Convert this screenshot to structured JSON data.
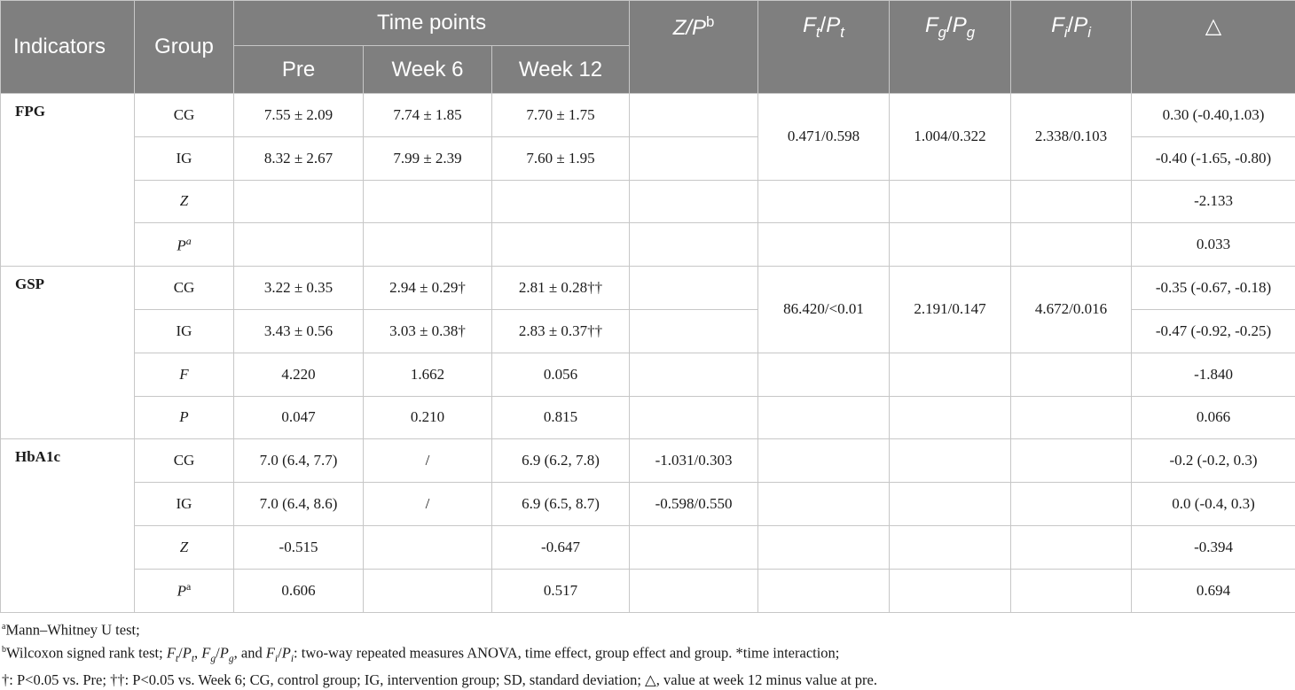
{
  "header": {
    "indicators": "Indicators",
    "group": "Group",
    "time_points": "Time points",
    "pre": "Pre",
    "week6": "Week 6",
    "week12": "Week 12",
    "zp": "Z/P",
    "zp_sup": "b",
    "ft": "F",
    "ft_sub": "t",
    "pt": "P",
    "pt_sub": "t",
    "fg": "F",
    "fg_sub": "g",
    "pg": "P",
    "pg_sub": "g",
    "fi": "F",
    "fi_sub": "i",
    "pi": "P",
    "pi_sub": "i",
    "delta": "△"
  },
  "sections": [
    {
      "indicator": "FPG",
      "ft_pt": "0.471/0.598",
      "fg_pg": "1.004/0.322",
      "fi_pi": "2.338/0.103",
      "rows": [
        {
          "group": "CG",
          "pre": "7.55 ± 2.09",
          "week6": "7.74 ± 1.85",
          "week12": "7.70 ± 1.75",
          "zp": "",
          "delta": "0.30 (-0.40,1.03)"
        },
        {
          "group": "IG",
          "pre": "8.32 ± 2.67",
          "week6": "7.99 ± 2.39",
          "week12": "7.60 ± 1.95",
          "zp": "",
          "delta": "-0.40 (-1.65, -0.80)"
        },
        {
          "group": "Z",
          "pre": "",
          "week6": "",
          "week12": "",
          "zp": "",
          "delta": "-2.133"
        },
        {
          "group": "P",
          "group_sup": "a",
          "pre": "",
          "week6": "",
          "week12": "",
          "zp": "",
          "delta": "0.033"
        }
      ]
    },
    {
      "indicator": "GSP",
      "ft_pt": "86.420/<0.01",
      "fg_pg": "2.191/0.147",
      "fi_pi": "4.672/0.016",
      "rows": [
        {
          "group": "CG",
          "pre": "3.22 ± 0.35",
          "week6": "2.94 ± 0.29†",
          "week12": "2.81 ± 0.28††",
          "zp": "",
          "delta": "-0.35 (-0.67, -0.18)"
        },
        {
          "group": "IG",
          "pre": "3.43 ± 0.56",
          "week6": "3.03 ± 0.38†",
          "week12": "2.83 ± 0.37††",
          "zp": "",
          "delta": "-0.47 (-0.92, -0.25)"
        },
        {
          "group": "F",
          "pre": "4.220",
          "week6": "1.662",
          "week12": "0.056",
          "zp": "",
          "delta": "-1.840"
        },
        {
          "group": "P",
          "pre": "0.047",
          "week6": "0.210",
          "week12": "0.815",
          "zp": "",
          "delta": "0.066"
        }
      ]
    },
    {
      "indicator": "HbA1c",
      "ft_pt": "",
      "fg_pg": "",
      "fi_pi": "",
      "rows": [
        {
          "group": "CG",
          "pre": "7.0 (6.4, 7.7)",
          "week6": "/",
          "week12": "6.9 (6.2, 7.8)",
          "zp": "-1.031/0.303",
          "delta": "-0.2 (-0.2, 0.3)"
        },
        {
          "group": "IG",
          "pre": "7.0 (6.4, 8.6)",
          "week6": "/",
          "week12": "6.9 (6.5, 8.7)",
          "zp": "-0.598/0.550",
          "delta": "0.0 (-0.4, 0.3)"
        },
        {
          "group": "Z",
          "pre": "-0.515",
          "week6": "",
          "week12": "-0.647",
          "zp": "",
          "delta": "-0.394"
        },
        {
          "group": "P",
          "group_sup": "a",
          "pre": "0.606",
          "week6": "",
          "week12": "0.517",
          "zp": "",
          "delta": "0.694"
        }
      ]
    }
  ],
  "footnotes": {
    "a_mark": "a",
    "a_text": "Mann–Whitney U test;",
    "b_mark": "b",
    "b_text1": "Wilcoxon signed rank test; ",
    "b_text2": ": two-way repeated measures ANOVA, time effect, group effect and group. *time interaction;",
    "b_ft": "F",
    "b_ft_sub": "t",
    "b_pt": "P",
    "b_pt_sub": "t",
    "b_fg": "F",
    "b_fg_sub": "g",
    "b_pg": "P",
    "b_pg_sub": "g",
    "b_and": ", and ",
    "b_fi": "F",
    "b_fi_sub": "i",
    "b_pi": "P",
    "b_pi_sub": "i",
    "c_text1": "†: P<0.05 vs. Pre; ††: P<0.05 vs. Week 6; CG, control group; IG, intervention group; SD, standard deviation; ",
    "c_delta": "△",
    "c_text2": ", value at week 12 minus value at pre."
  }
}
